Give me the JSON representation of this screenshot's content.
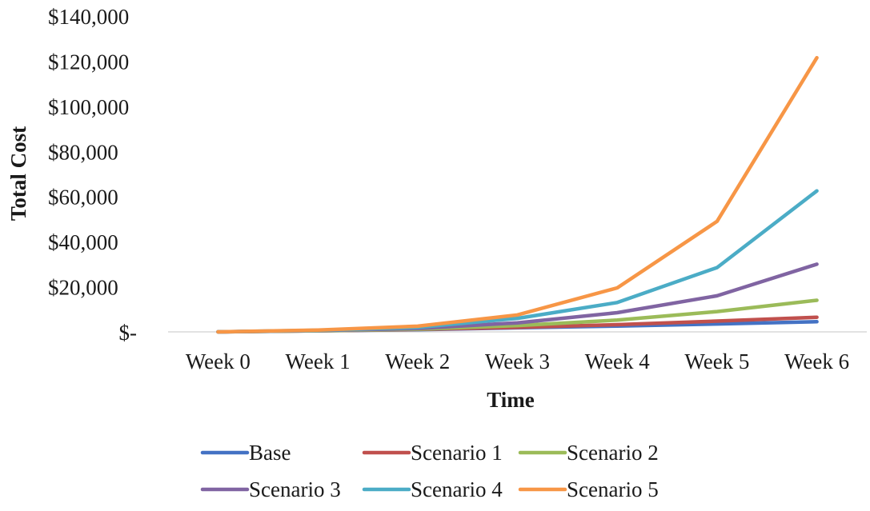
{
  "chart_data": {
    "type": "line",
    "title": "",
    "xlabel": "Time",
    "ylabel": "Total Cost",
    "categories": [
      "Week 0",
      "Week 1",
      "Week 2",
      "Week 3",
      "Week 4",
      "Week 5",
      "Week 6"
    ],
    "ylim": [
      0,
      140000
    ],
    "yticks": [
      0,
      20000,
      40000,
      60000,
      80000,
      100000,
      120000,
      140000
    ],
    "ytick_labels": [
      "$-",
      "$20,000",
      "$40,000",
      "$60,000",
      "$80,000",
      "$100,000",
      "$120,000",
      "$140,000"
    ],
    "grid": false,
    "legend_position": "bottom",
    "series": [
      {
        "name": "Base",
        "color": "#4472C4",
        "values": [
          0,
          500,
          1000,
          1800,
          2600,
          3500,
          4500
        ]
      },
      {
        "name": "Scenario 1",
        "color": "#C0504D",
        "values": [
          0,
          500,
          1100,
          2000,
          3200,
          4800,
          6500
        ]
      },
      {
        "name": "Scenario 2",
        "color": "#9BBB59",
        "values": [
          0,
          500,
          1200,
          2800,
          5200,
          9000,
          14000
        ]
      },
      {
        "name": "Scenario 3",
        "color": "#8064A2",
        "values": [
          0,
          600,
          1500,
          4000,
          8500,
          16000,
          30000
        ]
      },
      {
        "name": "Scenario 4",
        "color": "#4BACC6",
        "values": [
          0,
          700,
          2000,
          6000,
          13000,
          28500,
          62500
        ]
      },
      {
        "name": "Scenario 5",
        "color": "#F79646",
        "values": [
          0,
          800,
          2500,
          7500,
          19500,
          49000,
          121500
        ]
      }
    ]
  }
}
